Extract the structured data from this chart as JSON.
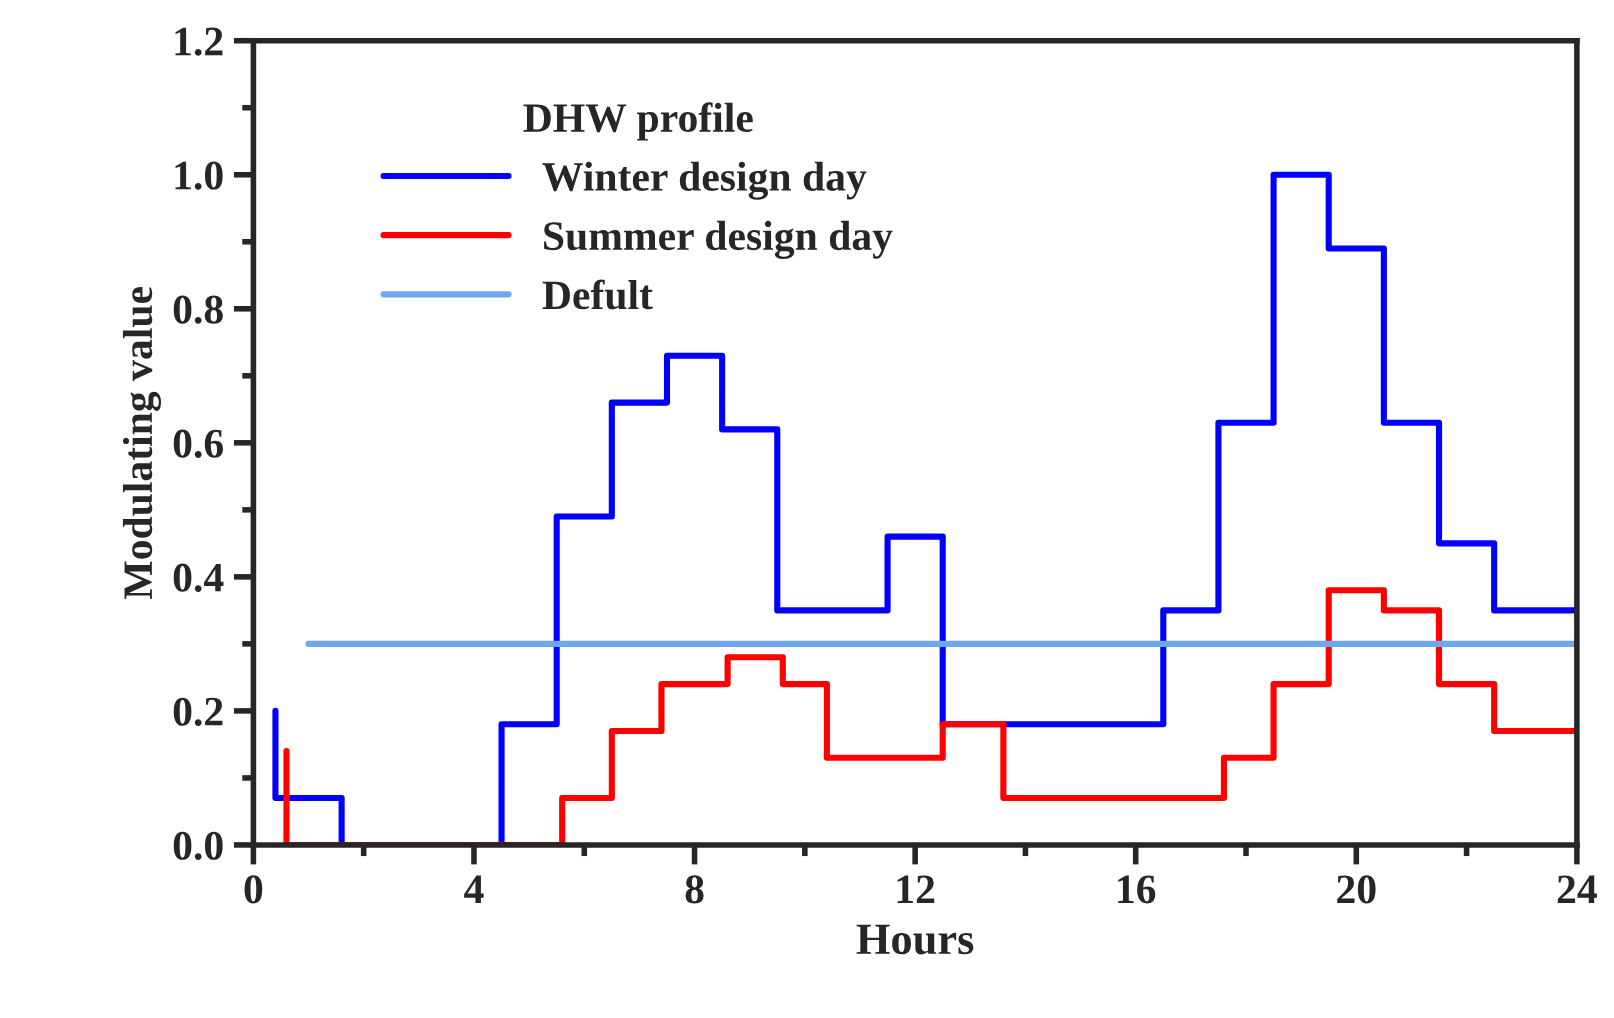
{
  "chart_data": {
    "type": "step",
    "xlabel": "Hours",
    "ylabel": "Modulating value",
    "legend_title": "DHW profile",
    "legend": "top left",
    "grid": false,
    "xlim": [
      0,
      24
    ],
    "xticks": [
      0,
      4,
      8,
      12,
      16,
      20,
      24
    ],
    "ylim": [
      0,
      1.2
    ],
    "yticks": [
      {
        "value": 0,
        "label": "0.0"
      },
      {
        "value": 0.2,
        "label": "0.2"
      },
      {
        "value": 0.4,
        "label": "0.4"
      },
      {
        "value": 0.6,
        "label": "0.6"
      },
      {
        "value": 0.8,
        "label": "0.8"
      },
      {
        "value": 1.0,
        "label": "1.0"
      },
      {
        "value": 1.2,
        "label": "1.2"
      }
    ],
    "series": [
      {
        "name": "Winter design day",
        "color": "#0000ff",
        "x": [
          0.4,
          0.4,
          1.6,
          4.5,
          5.5,
          6.5,
          7.5,
          8.5,
          9.5,
          11.5,
          12.5,
          16.5,
          17.5,
          18.5,
          19.5,
          20.5,
          21.5,
          22.5,
          24
        ],
        "values": [
          0.2,
          0.07,
          0,
          0.18,
          0.49,
          0.66,
          0.73,
          0.62,
          0.35,
          0.46,
          0.18,
          0.35,
          0.63,
          1.0,
          0.89,
          0.63,
          0.45,
          0.35,
          0.35
        ]
      },
      {
        "name": "Summer design day",
        "color": "#ff0000",
        "x": [
          0.6,
          0.6,
          5.6,
          6.5,
          7.4,
          8.6,
          9.6,
          10.4,
          12.5,
          13.6,
          17.6,
          18.5,
          19.5,
          20.5,
          21.5,
          22.5,
          24
        ],
        "values": [
          0.14,
          0,
          0.07,
          0.17,
          0.24,
          0.28,
          0.24,
          0.13,
          0.18,
          0.07,
          0.13,
          0.24,
          0.38,
          0.35,
          0.24,
          0.17,
          0.17
        ]
      },
      {
        "name": "Defult",
        "type": "line",
        "color": "#6fa8f0",
        "x": [
          1,
          24
        ],
        "values": [
          0.3,
          0.3
        ]
      }
    ]
  }
}
